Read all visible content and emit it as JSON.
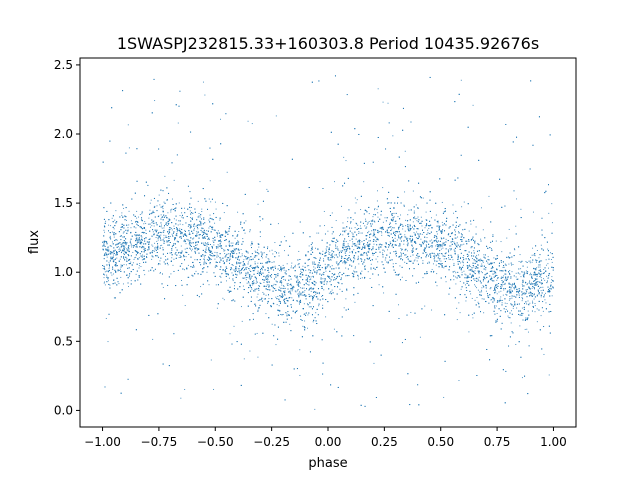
{
  "chart_data": {
    "type": "scatter",
    "title": "1SWASPJ232815.33+160303.8 Period 10435.92676s",
    "xlabel": "phase",
    "ylabel": "flux",
    "xlim": [
      -1.1,
      1.1
    ],
    "ylim": [
      -0.12,
      2.55
    ],
    "x_ticks": [
      -1.0,
      -0.75,
      -0.5,
      -0.25,
      0.0,
      0.25,
      0.5,
      0.75,
      1.0
    ],
    "x_tick_labels": [
      "−1.00",
      "−0.75",
      "−0.50",
      "−0.25",
      "0.00",
      "0.25",
      "0.50",
      "0.75",
      "1.00"
    ],
    "y_ticks": [
      0.0,
      0.5,
      1.0,
      1.5,
      2.0,
      2.5
    ],
    "y_tick_labels": [
      "0.0",
      "0.5",
      "1.0",
      "1.5",
      "2.0",
      "2.5"
    ],
    "grid": false,
    "legend": "none",
    "point_color": "#1f77b4",
    "series": [
      {
        "x_range": [
          -1.0,
          1.0
        ],
        "mean_trend": [
          [
            -1.0,
            1.1
          ],
          [
            -0.9,
            1.18
          ],
          [
            -0.8,
            1.25
          ],
          [
            -0.7,
            1.28
          ],
          [
            -0.6,
            1.25
          ],
          [
            -0.5,
            1.18
          ],
          [
            -0.4,
            1.08
          ],
          [
            -0.3,
            0.97
          ],
          [
            -0.2,
            0.88
          ],
          [
            -0.15,
            0.86
          ],
          [
            -0.1,
            0.9
          ],
          [
            0.0,
            1.02
          ],
          [
            0.1,
            1.15
          ],
          [
            0.2,
            1.24
          ],
          [
            0.3,
            1.28
          ],
          [
            0.4,
            1.26
          ],
          [
            0.5,
            1.18
          ],
          [
            0.6,
            1.08
          ],
          [
            0.7,
            0.97
          ],
          [
            0.8,
            0.88
          ],
          [
            0.85,
            0.86
          ],
          [
            0.9,
            0.9
          ],
          [
            1.0,
            1.0
          ]
        ],
        "scatter_sd": 0.13,
        "outlier_range": [
          0.0,
          2.45
        ]
      }
    ]
  }
}
